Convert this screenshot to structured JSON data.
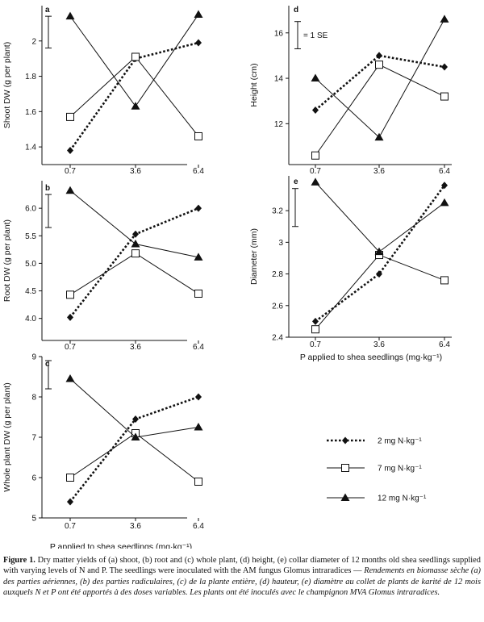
{
  "chart_data": [
    {
      "type": "line",
      "panel_label": "a",
      "ylabel": "Shoot DW (g per plant)",
      "xlabel": "",
      "categories": [
        "0.7",
        "3.6",
        "6.4"
      ],
      "yticks": [
        1.4,
        1.6,
        1.8,
        2.0
      ],
      "ylim": [
        1.3,
        2.2
      ],
      "se_bar": [
        1.96,
        2.14
      ],
      "series": [
        {
          "name": "2 mg N·kg⁻¹",
          "marker": "diamond",
          "style": "dotted",
          "values": [
            1.38,
            1.9,
            1.99
          ]
        },
        {
          "name": "7 mg N·kg⁻¹",
          "marker": "square",
          "style": "solid",
          "values": [
            1.57,
            1.91,
            1.46
          ]
        },
        {
          "name": "12 mg N·kg⁻¹",
          "marker": "triangle",
          "style": "solid",
          "values": [
            2.14,
            1.63,
            2.15
          ]
        }
      ]
    },
    {
      "type": "line",
      "panel_label": "b",
      "ylabel": "Root DW (g per plant)",
      "xlabel": "",
      "categories": [
        "0.7",
        "3.6",
        "6.4"
      ],
      "yticks": [
        4.0,
        4.5,
        5.0,
        5.5,
        6.0
      ],
      "yticklabels": [
        "4.0",
        "4.5",
        "5.0",
        "5.5",
        "6.0"
      ],
      "ylim": [
        3.6,
        6.5
      ],
      "se_bar": [
        5.65,
        6.25
      ],
      "series": [
        {
          "name": "2 mg N·kg⁻¹",
          "marker": "diamond",
          "style": "dotted",
          "values": [
            4.02,
            5.53,
            6.0
          ]
        },
        {
          "name": "7 mg N·kg⁻¹",
          "marker": "square",
          "style": "solid",
          "values": [
            4.43,
            5.18,
            4.45
          ]
        },
        {
          "name": "12 mg N·kg⁻¹",
          "marker": "triangle",
          "style": "solid",
          "values": [
            6.32,
            5.35,
            5.11
          ]
        }
      ]
    },
    {
      "type": "line",
      "panel_label": "c",
      "ylabel": "Whole plant DW (g per plant)",
      "xlabel": "P applied to shea seedlings (mg·kg⁻¹)",
      "categories": [
        "0.7",
        "3.6",
        "6.4"
      ],
      "yticks": [
        5,
        6,
        7,
        8,
        9
      ],
      "ylim": [
        5,
        9
      ],
      "se_bar": [
        8.2,
        8.9
      ],
      "series": [
        {
          "name": "2 mg N·kg⁻¹",
          "marker": "diamond",
          "style": "dotted",
          "values": [
            5.4,
            7.45,
            8.0
          ]
        },
        {
          "name": "7 mg N·kg⁻¹",
          "marker": "square",
          "style": "solid",
          "values": [
            6.0,
            7.1,
            5.9
          ]
        },
        {
          "name": "12 mg N·kg⁻¹",
          "marker": "triangle",
          "style": "solid",
          "values": [
            8.45,
            7.0,
            7.25
          ]
        }
      ]
    },
    {
      "type": "line",
      "panel_label": "d",
      "ylabel": "Height (cm)",
      "xlabel": "",
      "categories": [
        "0.7",
        "3.6",
        "6.4"
      ],
      "yticks": [
        12,
        14,
        16
      ],
      "ylim": [
        10.2,
        17.2
      ],
      "se_bar": [
        15.3,
        16.5
      ],
      "se_label": "= 1 SE",
      "series": [
        {
          "name": "2 mg N·kg⁻¹",
          "marker": "diamond",
          "style": "dotted",
          "values": [
            12.6,
            15.0,
            14.5
          ]
        },
        {
          "name": "7 mg N·kg⁻¹",
          "marker": "square",
          "style": "solid",
          "values": [
            10.6,
            14.6,
            13.2
          ]
        },
        {
          "name": "12 mg N·kg⁻¹",
          "marker": "triangle",
          "style": "solid",
          "values": [
            14.0,
            11.4,
            16.6
          ]
        }
      ]
    },
    {
      "type": "line",
      "panel_label": "e",
      "ylabel": "Diameter (mm)",
      "xlabel": "P applied to shea seedlings (mg·kg⁻¹)",
      "categories": [
        "0.7",
        "3.6",
        "6.4"
      ],
      "yticks": [
        2.4,
        2.6,
        2.8,
        3.0,
        3.2
      ],
      "ylim": [
        2.4,
        3.42
      ],
      "se_bar": [
        3.1,
        3.34
      ],
      "series": [
        {
          "name": "2 mg N·kg⁻¹",
          "marker": "diamond",
          "style": "dotted",
          "values": [
            2.5,
            2.8,
            3.36
          ]
        },
        {
          "name": "7 mg N·kg⁻¹",
          "marker": "square",
          "style": "solid",
          "values": [
            2.45,
            2.92,
            2.76
          ]
        },
        {
          "name": "12 mg N·kg⁻¹",
          "marker": "triangle",
          "style": "solid",
          "values": [
            3.38,
            2.94,
            3.25
          ]
        }
      ]
    }
  ],
  "legend": [
    {
      "label": "2 mg N·kg⁻¹",
      "marker": "diamond",
      "style": "dotted"
    },
    {
      "label": "7 mg N·kg⁻¹",
      "marker": "square",
      "style": "solid"
    },
    {
      "label": "12 mg N·kg⁻¹",
      "marker": "triangle",
      "style": "solid"
    }
  ],
  "caption": {
    "label": "Figure 1.",
    "english": " Dry matter yields of (a) shoot, (b) root and (c) whole plant, (d) height, (e) collar diameter of 12 months old shea seedlings supplied with varying levels of N and P. The seedlings were inoculated with the AM fungus Glomus intraradices — ",
    "french": "Rendements en biomasse sèche (a) des parties aériennes, (b) des parties radiculaires, (c) de la plante entière, (d) hauteur, (e) diamètre au collet de plants de karité de 12 mois auxquels N et P ont été apportés à des doses variables. Les plants ont été inoculés avec le champignon MVA Glomus intraradices."
  }
}
